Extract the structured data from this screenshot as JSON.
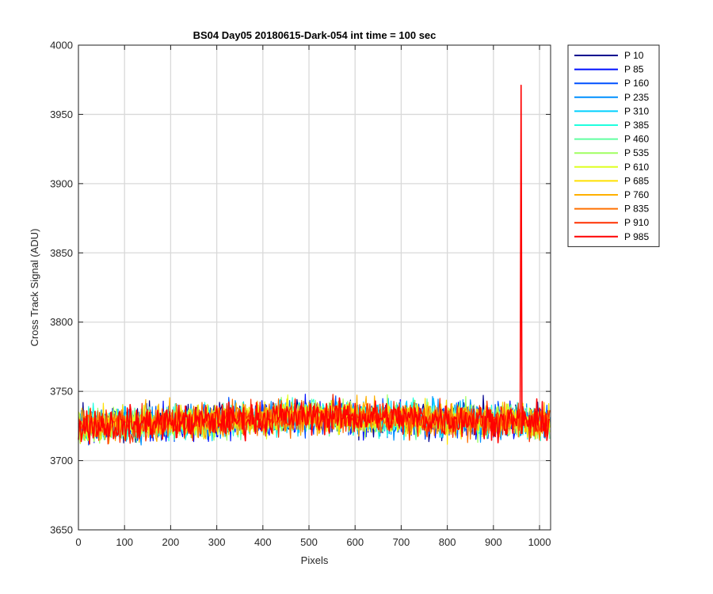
{
  "chart_data": {
    "type": "line",
    "title": "BS04 Day05 20180615-Dark-054 int time = 100 sec",
    "xlabel": "Pixels",
    "ylabel": "Cross Track Signal (ADU)",
    "xlim": [
      0,
      1024
    ],
    "ylim": [
      3650,
      4000
    ],
    "xticks": [
      0,
      100,
      200,
      300,
      400,
      500,
      600,
      700,
      800,
      900,
      1000
    ],
    "yticks": [
      3650,
      3700,
      3750,
      3800,
      3850,
      3900,
      3950,
      4000
    ],
    "grid": true,
    "legend_position": "outside-top-right",
    "noise": {
      "baseline_left": 3725,
      "baseline_mid": 3732,
      "baseline_right": 3728,
      "amplitude": 11,
      "min_observed": 3690,
      "max_observed": 3774
    },
    "spike": {
      "series": "P 985",
      "x": 960,
      "y": 3971
    },
    "series": [
      {
        "name": "P 10",
        "color": "#00008f"
      },
      {
        "name": "P 85",
        "color": "#0010ff"
      },
      {
        "name": "P 160",
        "color": "#0050ff"
      },
      {
        "name": "P 235",
        "color": "#0090ff"
      },
      {
        "name": "P 310",
        "color": "#00d0ff"
      },
      {
        "name": "P 385",
        "color": "#20ffdf"
      },
      {
        "name": "P 460",
        "color": "#60ffa0"
      },
      {
        "name": "P 535",
        "color": "#9fff60"
      },
      {
        "name": "P 610",
        "color": "#dfff20"
      },
      {
        "name": "P 685",
        "color": "#ffe000"
      },
      {
        "name": "P 760",
        "color": "#ffb000"
      },
      {
        "name": "P 835",
        "color": "#ff7000"
      },
      {
        "name": "P 910",
        "color": "#ff3000"
      },
      {
        "name": "P 985",
        "color": "#ff0000"
      }
    ]
  }
}
